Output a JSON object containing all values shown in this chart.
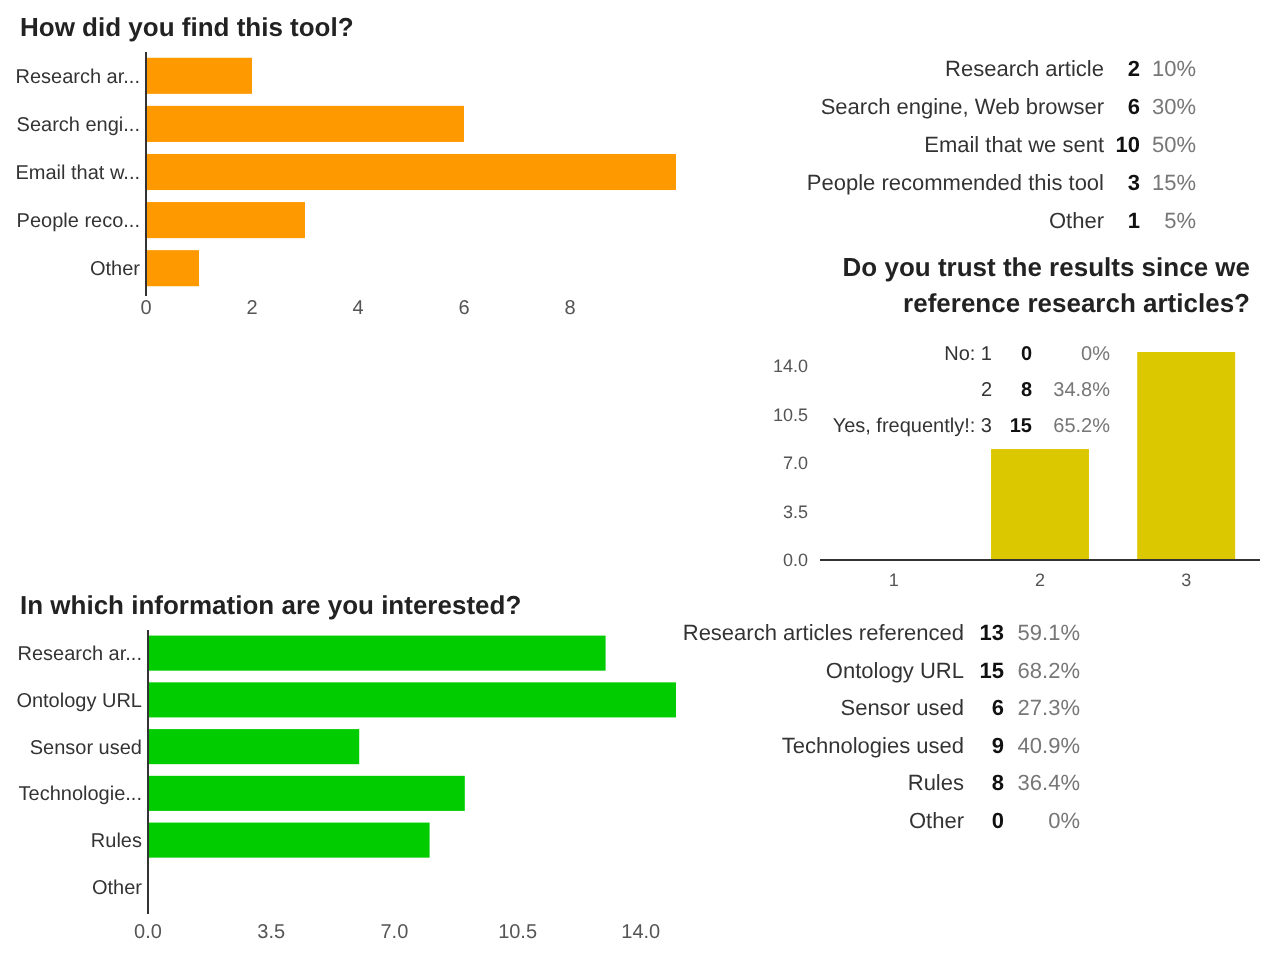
{
  "chart_data": [
    {
      "type": "bar",
      "orientation": "horizontal",
      "title": "How did you find this tool?",
      "categories": [
        "Research ar...",
        "Search engi...",
        "Email that w...",
        "People reco...",
        "Other"
      ],
      "values": [
        2,
        6,
        10,
        3,
        1
      ],
      "color": "#ff9900",
      "xlim": [
        0,
        10
      ],
      "xticks": [
        0,
        2,
        4,
        6,
        8
      ]
    },
    {
      "type": "other",
      "annotations": [
        "Research article",
        "2",
        "10%",
        "Search engine, Web browser",
        "6",
        "30%",
        "Email that we sent",
        "10",
        "50%",
        "People recommended this tool",
        "3",
        "15%",
        "Other",
        "1",
        "5%"
      ]
    },
    {
      "type": "bar",
      "title": "Do you trust the results since we reference research articles?",
      "categories": [
        "1",
        "2",
        "3"
      ],
      "values": [
        0,
        8,
        15
      ],
      "color": "#dcc800",
      "ylim": [
        0,
        15
      ],
      "yticks": [
        {
          "value": 0,
          "label": "0.0"
        },
        {
          "value": 3.5,
          "label": "3.5"
        },
        {
          "value": 7,
          "label": "7.0"
        },
        {
          "value": 10.5,
          "label": "10.5"
        },
        {
          "value": 14,
          "label": "14.0"
        }
      ]
    },
    {
      "type": "other",
      "annotations": [
        "No: 1",
        "0",
        "0%",
        "2",
        "8",
        "34.8%",
        "Yes, frequently!: 3",
        "15",
        "65.2%"
      ]
    },
    {
      "type": "bar",
      "orientation": "horizontal",
      "title": "In which information are you interested?",
      "categories": [
        "Research ar...",
        "Ontology URL",
        "Sensor used",
        "Technologie...",
        "Rules",
        "Other"
      ],
      "values": [
        13,
        15,
        6,
        9,
        8,
        0
      ],
      "color": "#00cc00",
      "xlim": [
        0,
        15
      ],
      "xticks": [
        {
          "value": 0,
          "label": "0.0"
        },
        {
          "value": 3.5,
          "label": "3.5"
        },
        {
          "value": 7,
          "label": "7.0"
        },
        {
          "value": 10.5,
          "label": "10.5"
        },
        {
          "value": 14,
          "label": "14.0"
        }
      ]
    },
    {
      "type": "other",
      "annotations": [
        "Research articles referenced",
        "13",
        "59.1%",
        "Ontology URL",
        "15",
        "68.2%",
        "Sensor used",
        "6",
        "27.3%",
        "Technologies used",
        "9",
        "40.9%",
        "Rules",
        "8",
        "36.4%",
        "Other",
        "0",
        "0%"
      ]
    }
  ]
}
